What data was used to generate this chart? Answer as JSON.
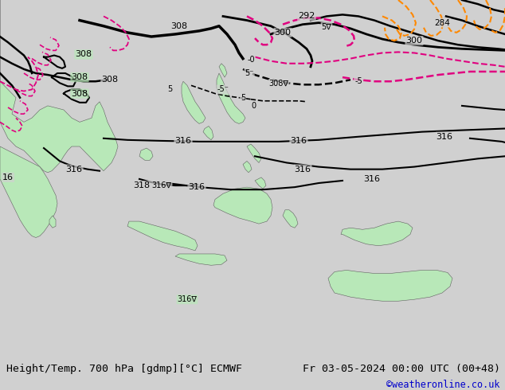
{
  "title_left": "Height/Temp. 700 hPa [gdmp][°C] ECMWF",
  "title_right": "Fr 03-05-2024 00:00 UTC (00+48)",
  "credit": "©weatheronline.co.uk",
  "bg_color": "#d0d0d0",
  "land_color": "#b8e8b8",
  "fig_width": 6.34,
  "fig_height": 4.9,
  "dpi": 100,
  "bottom_bar_height": 0.082,
  "title_fontsize": 9.5,
  "credit_color": "#0000cc",
  "credit_fontsize": 8.5
}
